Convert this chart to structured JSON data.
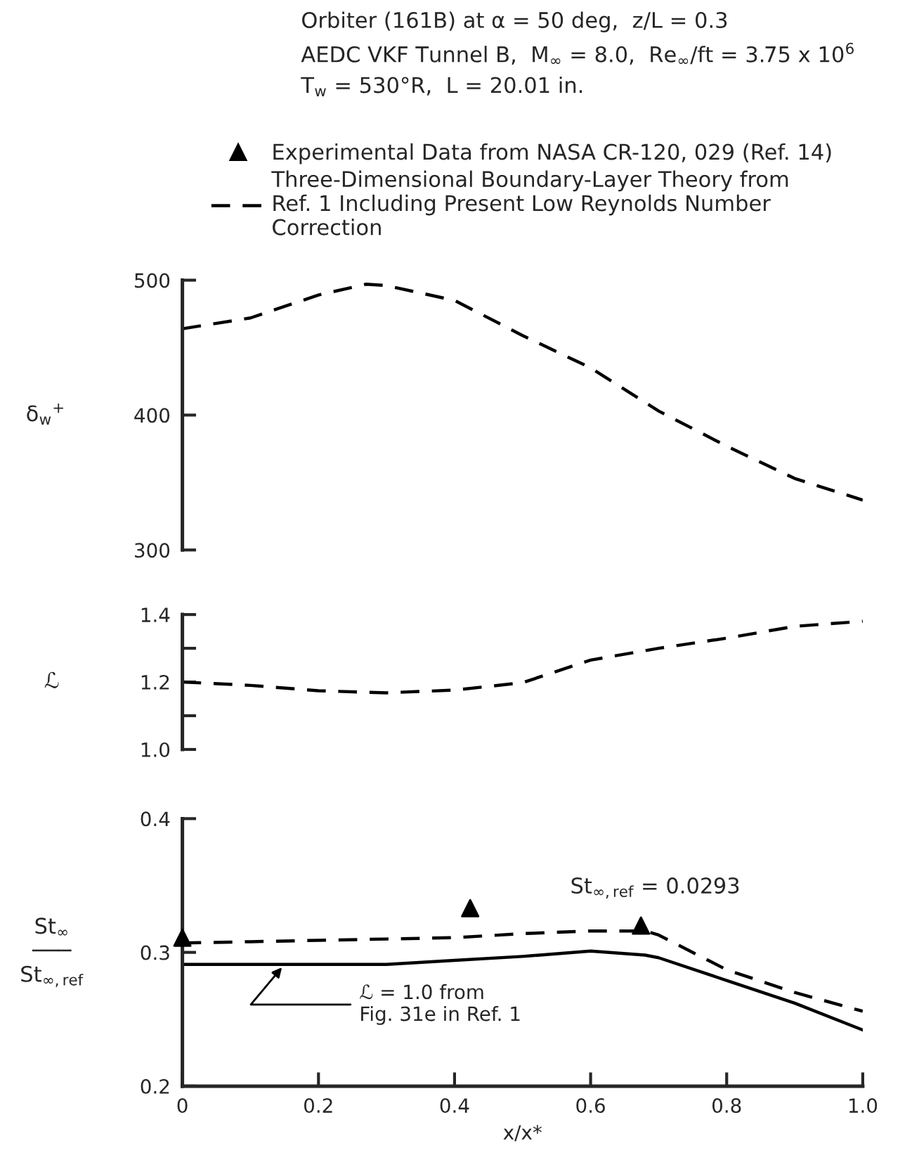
{
  "chart_data": [
    {
      "type": "line",
      "title": "Orbiter (161B) at α = 50 deg,  z/L = 0.3\nAEDC VKF Tunnel B,  M$_{∞}$ = 8.0,  Re$_{∞}$/ft = 3.75 x 10$^{6}$\nT$_{w}$ = 530°R,  L = 20.01 in.",
      "ylabel": "δ$_{w}$$^{+}$",
      "x": [
        0,
        0.1,
        0.2,
        0.27,
        0.3,
        0.4,
        0.5,
        0.6,
        0.7,
        0.8,
        0.9,
        1.0
      ],
      "series": [
        {
          "color": "#000000",
          "line_style": "dashed",
          "values": [
            464,
            472,
            489,
            497,
            496,
            485,
            459,
            435,
            403,
            377,
            353,
            337
          ]
        }
      ],
      "xlim": [
        0,
        1
      ],
      "ylim": [
        300,
        500
      ],
      "yticks": [
        300,
        400,
        500
      ],
      "tick_labels": "y",
      "grid": false
    },
    {
      "type": "line",
      "ylabel": "ℒ",
      "x": [
        0,
        0.1,
        0.2,
        0.3,
        0.4,
        0.5,
        0.6,
        0.7,
        0.8,
        0.9,
        1.0
      ],
      "series": [
        {
          "color": "#000000",
          "line_style": "dashed",
          "values": [
            1.2,
            1.19,
            1.174,
            1.168,
            1.176,
            1.198,
            1.265,
            1.3,
            1.33,
            1.365,
            1.38
          ]
        }
      ],
      "xlim": [
        0,
        1
      ],
      "ylim": [
        1.0,
        1.4
      ],
      "yticks": [
        {
          "value": 1.0,
          "label": "1.0"
        },
        {
          "value": 1.1,
          "label": null
        },
        1.2,
        {
          "value": 1.3,
          "label": null
        },
        1.4
      ],
      "tick_labels": "y",
      "grid": false
    },
    {
      "type": "line",
      "xlabel": "x/x*",
      "ylabel": "St$_{∞}$\n───\nSt$_{∞,ref}$",
      "x": [
        0,
        0.1,
        0.2,
        0.3,
        0.4,
        0.5,
        0.6,
        0.68,
        0.7,
        0.8,
        0.9,
        1.0
      ],
      "series": [
        {
          "name": "Three-Dimensional Boundary-Layer Theory from\nRef. 1 Including Present Low Reynolds Number\nCorrection",
          "color": "#000000",
          "line_style": "dashed",
          "values": [
            0.307,
            0.308,
            0.309,
            0.31,
            0.311,
            0.314,
            0.316,
            0.316,
            0.313,
            0.287,
            0.27,
            0.256
          ]
        },
        {
          "color": "#000000",
          "line_style": "solid",
          "values": [
            0.291,
            0.291,
            0.291,
            0.291,
            0.294,
            0.297,
            0.301,
            0.298,
            0.296,
            0.279,
            0.262,
            0.242
          ]
        },
        {
          "name": "Experimental Data from NASA CR-120, 029 (Ref. 14)",
          "type": "scatter",
          "marker": "triangle",
          "color": "#000000",
          "x": [
            0,
            0.423,
            0.674
          ],
          "values": [
            0.311,
            0.333,
            0.32
          ]
        }
      ],
      "annotations": [
        "St$_{∞,ref}$ = 0.0293",
        {
          "text": "ℒ = 1.0 from\nFig. 31e in Ref. 1",
          "x": 0.15,
          "y": 0.291
        }
      ],
      "xlim": [
        0,
        1
      ],
      "ylim": [
        0.2,
        0.4
      ],
      "xticks": [
        0,
        0.2,
        0.4,
        0.6,
        0.8,
        {
          "value": 1.0,
          "label": "1.0"
        }
      ],
      "yticks": [
        0.2,
        0.3,
        0.4
      ],
      "legend": "top",
      "grid": false
    }
  ]
}
